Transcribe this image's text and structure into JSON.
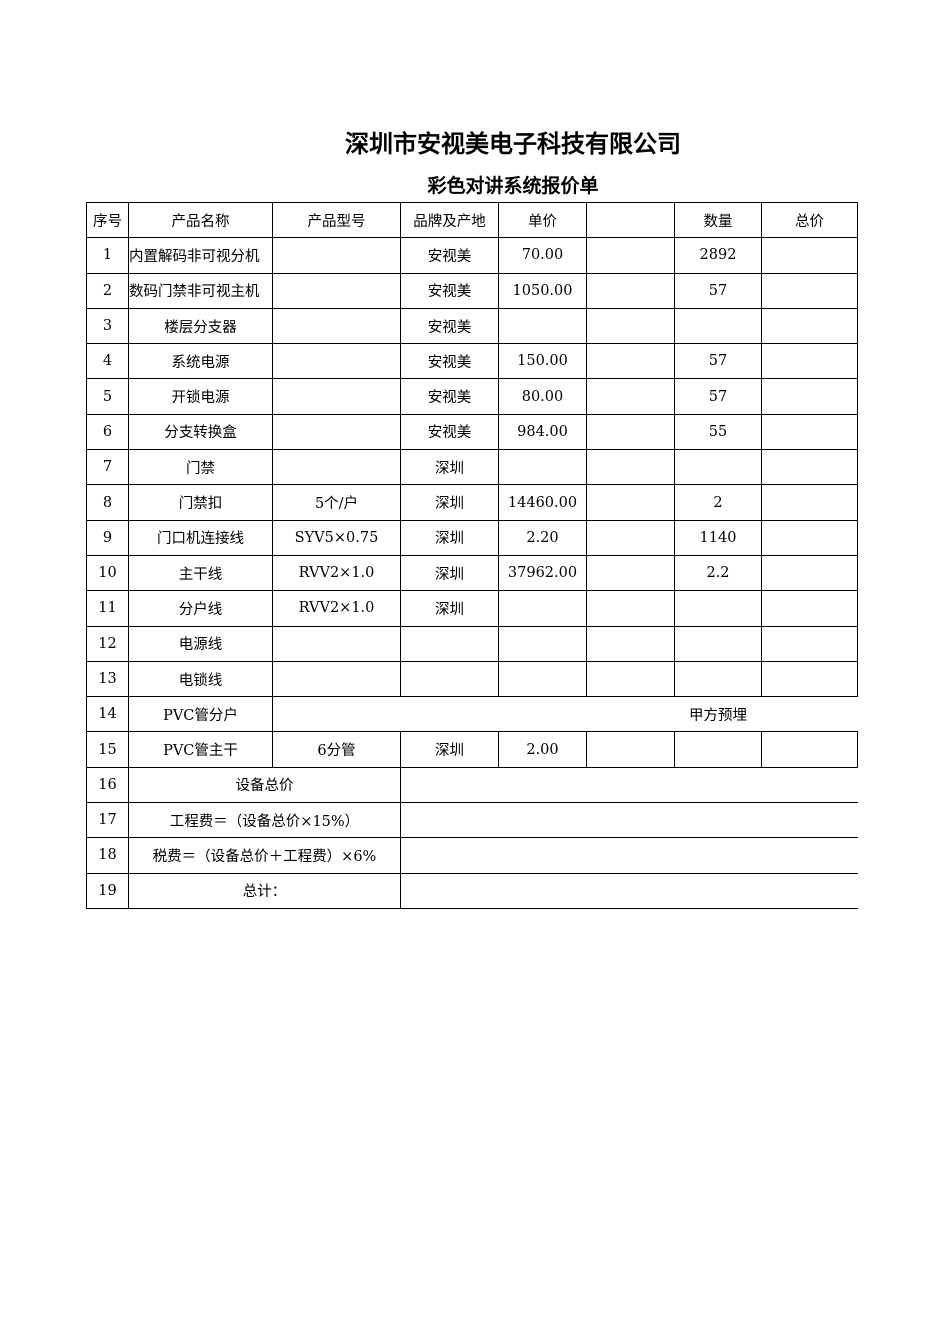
{
  "company": "深圳市安视美电子科技有限公司",
  "doc_title": "彩色对讲系统报价单",
  "headers": [
    "序号",
    "产品名称",
    "产品型号",
    "品牌及产地",
    "单价",
    "",
    "数量",
    "总价"
  ],
  "rows": [
    [
      "1",
      "内置解码非可视分机",
      "",
      "安视美",
      "70.00",
      "",
      "2892",
      ""
    ],
    [
      "2",
      "数码门禁非可视主机",
      "",
      "安视美",
      "1050.00",
      "",
      "57",
      ""
    ],
    [
      "3",
      "楼层分支器",
      "",
      "安视美",
      "",
      "",
      "",
      ""
    ],
    [
      "4",
      "系统电源",
      "",
      "安视美",
      "150.00",
      "",
      "57",
      ""
    ],
    [
      "5",
      "开锁电源",
      "",
      "安视美",
      "80.00",
      "",
      "57",
      ""
    ],
    [
      "6",
      "分支转换盒",
      "",
      "安视美",
      "984.00",
      "",
      "55",
      ""
    ],
    [
      "7",
      "门禁",
      "",
      "深圳",
      "",
      "",
      "",
      ""
    ],
    [
      "8",
      "门禁扣",
      "5个/户",
      "深圳",
      "14460.00",
      "",
      "2",
      ""
    ],
    [
      "9",
      "门口机连接线",
      "SYV5×0.75",
      "深圳",
      "2.20",
      "",
      "1140",
      ""
    ],
    [
      "10",
      "主干线",
      "RVV2×1.0",
      "深圳",
      "37962.00",
      "",
      "2.2",
      ""
    ],
    [
      "11",
      "分户线",
      "RVV2×1.0",
      "深圳",
      "",
      "",
      "",
      ""
    ],
    [
      "12",
      "电源线",
      "",
      "",
      "",
      "",
      "",
      ""
    ],
    [
      "13",
      "电锁线",
      "",
      "",
      "",
      "",
      "",
      ""
    ],
    [
      "14",
      "PVC管分户",
      "甲方预埋"
    ],
    [
      "15",
      "PVC管主干",
      "6分管",
      "深圳",
      "2.00",
      "",
      "",
      ""
    ],
    [
      "16",
      "设备总价",
      ""
    ],
    [
      "17",
      "工程费＝（设备总价×15%）",
      ""
    ],
    [
      "18",
      "税费＝（设备总价＋工程费）×6%",
      ""
    ],
    [
      "19",
      "总计：",
      ""
    ]
  ]
}
